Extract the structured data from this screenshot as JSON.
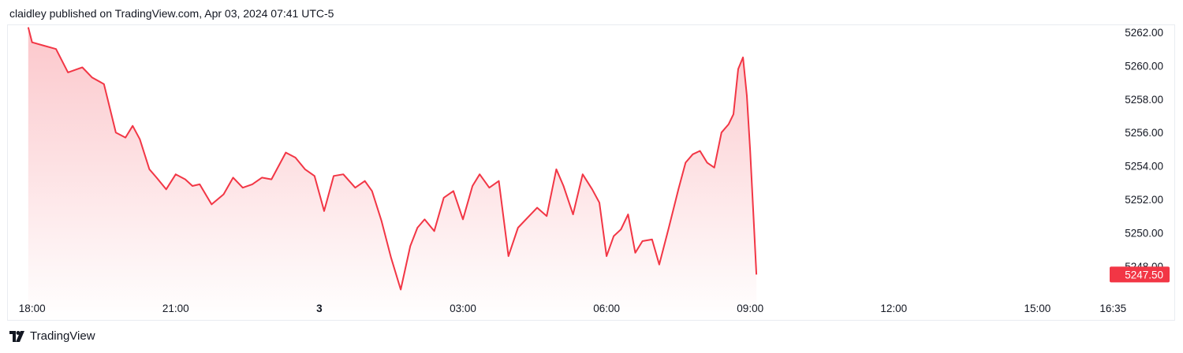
{
  "header": {
    "publisher_text": "claidley published on TradingView.com, Apr 03, 2024 07:41 UTC-5"
  },
  "footer": {
    "brand": "TradingView"
  },
  "colors": {
    "line": "#f23645",
    "fill_top": "#f23645",
    "badge": "#f23645",
    "grid_border": "#e9ecf1",
    "text": "#131722"
  },
  "chart_data": {
    "type": "area",
    "y_axis_position": "right",
    "ylim": [
      5246.5,
      5262.5
    ],
    "y_ticks": [
      "5262.00",
      "5260.00",
      "5258.00",
      "5256.00",
      "5254.00",
      "5252.00",
      "5250.00",
      "5248.00"
    ],
    "x_ticks": [
      {
        "label": "18:00",
        "hours": 0,
        "bold": false
      },
      {
        "label": "21:00",
        "hours": 3,
        "bold": false
      },
      {
        "label": "3",
        "hours": 6,
        "bold": true
      },
      {
        "label": "03:00",
        "hours": 9,
        "bold": false
      },
      {
        "label": "06:00",
        "hours": 12,
        "bold": false
      },
      {
        "label": "09:00",
        "hours": 15,
        "bold": false
      },
      {
        "label": "12:00",
        "hours": 18,
        "bold": false
      },
      {
        "label": "15:00",
        "hours": 21,
        "bold": false
      },
      {
        "label": "16:35",
        "hours": 22.58,
        "bold": false
      }
    ],
    "last_price": "5247.50",
    "series": [
      {
        "hours": [
          -0.08,
          0.0,
          0.25,
          0.5,
          0.75,
          0.95,
          1.05,
          1.25,
          1.5,
          1.75,
          1.95,
          2.1,
          2.25,
          2.45,
          2.6,
          2.8,
          3.0,
          3.2,
          3.35,
          3.5,
          3.75,
          4.0,
          4.2,
          4.4,
          4.6,
          4.8,
          5.0,
          5.3,
          5.5,
          5.7,
          5.9,
          6.1,
          6.3,
          6.5,
          6.75,
          6.95,
          7.1,
          7.3,
          7.5,
          7.7,
          7.9,
          8.05,
          8.2,
          8.4,
          8.6,
          8.8,
          9.0,
          9.2,
          9.35,
          9.55,
          9.75,
          9.95,
          10.15,
          10.35,
          10.55,
          10.75,
          10.95,
          11.1,
          11.3,
          11.5,
          11.7,
          11.85,
          12.0,
          12.15,
          12.3,
          12.45,
          12.6,
          12.75,
          12.95,
          13.1,
          13.3,
          13.5,
          13.65,
          13.8,
          13.95,
          14.1,
          14.25,
          14.4,
          14.55,
          14.65,
          14.75,
          14.85,
          14.93,
          15.0,
          15.07,
          15.13
        ],
        "values": [
          5262.3,
          5261.4,
          5261.2,
          5261.0,
          5259.6,
          5259.8,
          5259.9,
          5259.3,
          5258.9,
          5256.0,
          5255.7,
          5256.4,
          5255.6,
          5253.8,
          5253.3,
          5252.6,
          5253.5,
          5253.2,
          5252.8,
          5252.9,
          5251.7,
          5252.3,
          5253.3,
          5252.7,
          5252.9,
          5253.3,
          5253.2,
          5254.8,
          5254.5,
          5253.8,
          5253.4,
          5251.3,
          5253.4,
          5253.5,
          5252.7,
          5253.1,
          5252.5,
          5250.7,
          5248.5,
          5246.6,
          5249.2,
          5250.3,
          5250.8,
          5250.1,
          5252.1,
          5252.5,
          5250.8,
          5252.8,
          5253.5,
          5252.7,
          5253.1,
          5248.6,
          5250.3,
          5250.9,
          5251.5,
          5251.0,
          5253.8,
          5252.8,
          5251.1,
          5253.5,
          5252.6,
          5251.8,
          5248.6,
          5249.8,
          5250.2,
          5251.1,
          5248.8,
          5249.5,
          5249.6,
          5248.1,
          5250.3,
          5252.6,
          5254.2,
          5254.7,
          5254.9,
          5254.2,
          5253.9,
          5256.0,
          5256.5,
          5257.1,
          5259.8,
          5260.5,
          5258.2,
          5254.9,
          5251.0,
          5247.5
        ]
      }
    ]
  }
}
